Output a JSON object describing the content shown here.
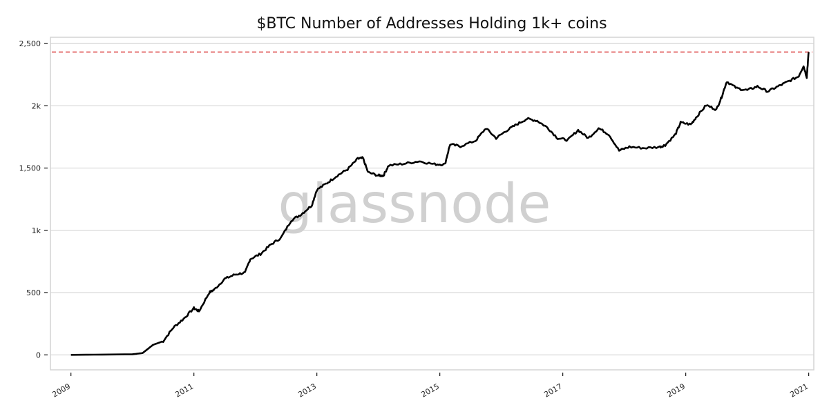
{
  "chart_data": {
    "type": "line",
    "title": "$BTC Number of Addresses Holding 1k+ coins",
    "watermark": "glassnode",
    "xlabel": "",
    "ylabel": "",
    "xlim": [
      "2008-09",
      "2021-02"
    ],
    "ylim": [
      -120,
      2550
    ],
    "grid": "horizontal",
    "line_color": "#000000",
    "reference_line": {
      "value": 2431,
      "color": "#e05252",
      "style": "dashed"
    },
    "y_ticks": [
      {
        "value": 0,
        "label": "0"
      },
      {
        "value": 500,
        "label": "500"
      },
      {
        "value": 1000,
        "label": "1k"
      },
      {
        "value": 1500,
        "label": "1,500"
      },
      {
        "value": 2000,
        "label": "2k"
      },
      {
        "value": 2500,
        "label": "2,500"
      }
    ],
    "x_ticks": [
      "2009",
      "2011",
      "2013",
      "2015",
      "2017",
      "2019",
      "2021"
    ],
    "series": [
      {
        "points": [
          [
            "2009-01",
            0
          ],
          [
            "2010-01",
            5
          ],
          [
            "2010-03",
            15
          ],
          [
            "2010-05",
            80
          ],
          [
            "2010-07",
            110
          ],
          [
            "2010-09",
            220
          ],
          [
            "2010-11",
            290
          ],
          [
            "2011-01",
            375
          ],
          [
            "2011-02",
            350
          ],
          [
            "2011-04",
            500
          ],
          [
            "2011-05",
            525
          ],
          [
            "2011-07",
            610
          ],
          [
            "2011-09",
            645
          ],
          [
            "2011-11",
            660
          ],
          [
            "2011-12",
            770
          ],
          [
            "2012-02",
            810
          ],
          [
            "2012-04",
            885
          ],
          [
            "2012-06",
            940
          ],
          [
            "2012-08",
            1080
          ],
          [
            "2012-10",
            1130
          ],
          [
            "2012-12",
            1200
          ],
          [
            "2013-01",
            1325
          ],
          [
            "2013-03",
            1380
          ],
          [
            "2013-05",
            1440
          ],
          [
            "2013-07",
            1490
          ],
          [
            "2013-09",
            1575
          ],
          [
            "2013-10",
            1580
          ],
          [
            "2013-11",
            1465
          ],
          [
            "2014-01",
            1440
          ],
          [
            "2014-02",
            1440
          ],
          [
            "2014-03",
            1520
          ],
          [
            "2014-06",
            1535
          ],
          [
            "2014-09",
            1555
          ],
          [
            "2014-12",
            1530
          ],
          [
            "2015-02",
            1530
          ],
          [
            "2015-03",
            1690
          ],
          [
            "2015-05",
            1675
          ],
          [
            "2015-08",
            1720
          ],
          [
            "2015-10",
            1820
          ],
          [
            "2015-12",
            1740
          ],
          [
            "2016-02",
            1800
          ],
          [
            "2016-04",
            1850
          ],
          [
            "2016-06",
            1895
          ],
          [
            "2016-08",
            1880
          ],
          [
            "2016-10",
            1825
          ],
          [
            "2016-12",
            1740
          ],
          [
            "2017-02",
            1725
          ],
          [
            "2017-04",
            1805
          ],
          [
            "2017-06",
            1740
          ],
          [
            "2017-08",
            1820
          ],
          [
            "2017-10",
            1770
          ],
          [
            "2017-12",
            1640
          ],
          [
            "2018-02",
            1670
          ],
          [
            "2018-05",
            1660
          ],
          [
            "2018-08",
            1670
          ],
          [
            "2018-09",
            1685
          ],
          [
            "2018-11",
            1770
          ],
          [
            "2018-12",
            1865
          ],
          [
            "2019-02",
            1850
          ],
          [
            "2019-03",
            1905
          ],
          [
            "2019-05",
            2005
          ],
          [
            "2019-07",
            1970
          ],
          [
            "2019-08",
            2070
          ],
          [
            "2019-09",
            2195
          ],
          [
            "2019-11",
            2140
          ],
          [
            "2020-01",
            2125
          ],
          [
            "2020-03",
            2155
          ],
          [
            "2020-05",
            2115
          ],
          [
            "2020-07",
            2155
          ],
          [
            "2020-09",
            2195
          ],
          [
            "2020-11",
            2235
          ],
          [
            "2020-12",
            2320
          ],
          [
            "2020-12-20",
            2230
          ],
          [
            "2021-01",
            2431
          ]
        ]
      }
    ]
  }
}
